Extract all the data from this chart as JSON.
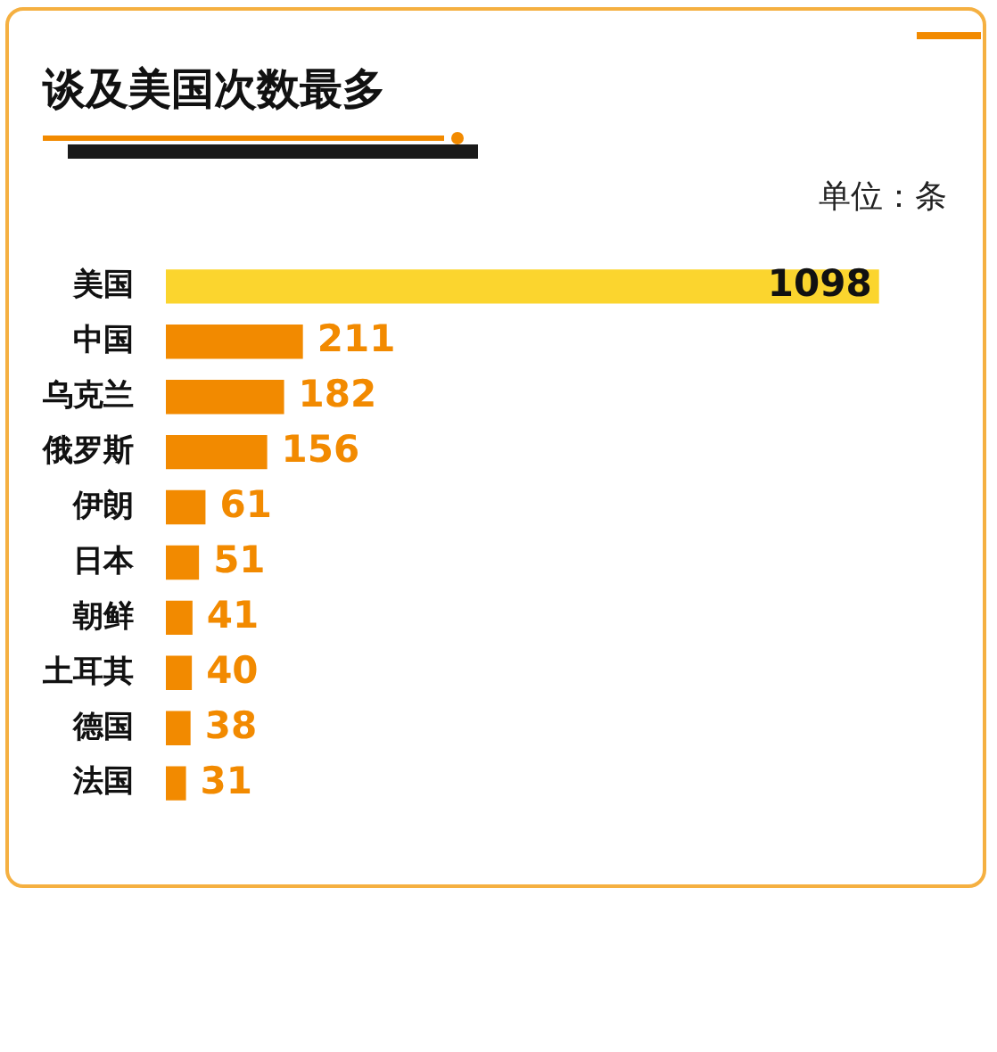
{
  "chart_data": {
    "type": "bar",
    "orientation": "horizontal",
    "title": "谈及美国次数最多",
    "annotations": [
      "单位：条"
    ],
    "categories": [
      "美国",
      "中国",
      "乌克兰",
      "俄罗斯",
      "伊朗",
      "日本",
      "朝鲜",
      "土耳其",
      "德国",
      "法国"
    ],
    "values": [
      1098,
      211,
      182,
      156,
      61,
      51,
      41,
      40,
      38,
      31
    ],
    "colors": [
      "#fbd52e",
      "#f28a00",
      "#f28a00",
      "#f28a00",
      "#f28a00",
      "#f28a00",
      "#f28a00",
      "#f28a00",
      "#f28a00",
      "#f28a00"
    ],
    "data_labels": true,
    "legend": false
  }
}
